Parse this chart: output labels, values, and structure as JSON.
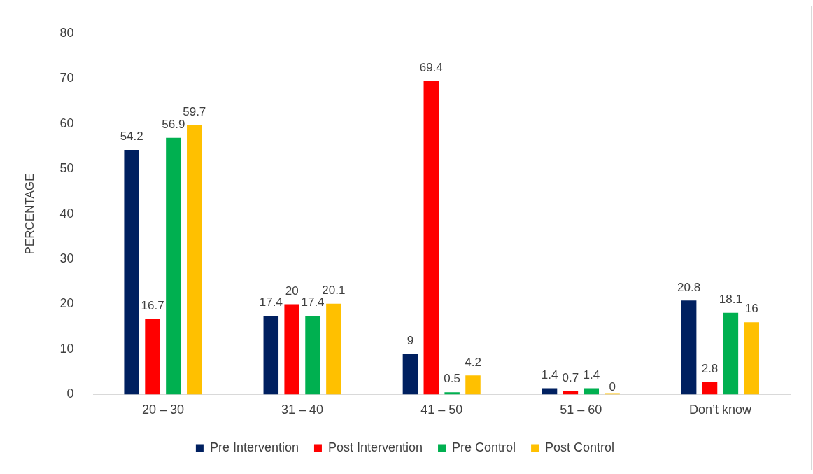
{
  "chart_data": {
    "type": "bar",
    "ylabel": "PERCENTAGE",
    "categories": [
      "20 – 30",
      "31 – 40",
      "41 – 50",
      "51 – 60",
      "Don’t know"
    ],
    "series": [
      {
        "name": "Pre Intervention",
        "color": "#002060",
        "values": [
          54.2,
          17.4,
          9,
          1.4,
          20.8
        ]
      },
      {
        "name": "Post Intervention",
        "color": "#ff0000",
        "values": [
          16.7,
          20,
          69.4,
          0.7,
          2.8
        ]
      },
      {
        "name": "Pre Control",
        "color": "#00b050",
        "values": [
          56.9,
          17.4,
          0.5,
          1.4,
          18.1
        ]
      },
      {
        "name": "Post Control",
        "color": "#ffc000",
        "values": [
          59.7,
          20.1,
          4.2,
          0,
          16
        ]
      }
    ],
    "ylim": [
      0,
      80
    ],
    "yticks": [
      0,
      10,
      20,
      30,
      40,
      50,
      60,
      70,
      80
    ],
    "grid": false,
    "legend": "bottom",
    "data_labels": true
  }
}
